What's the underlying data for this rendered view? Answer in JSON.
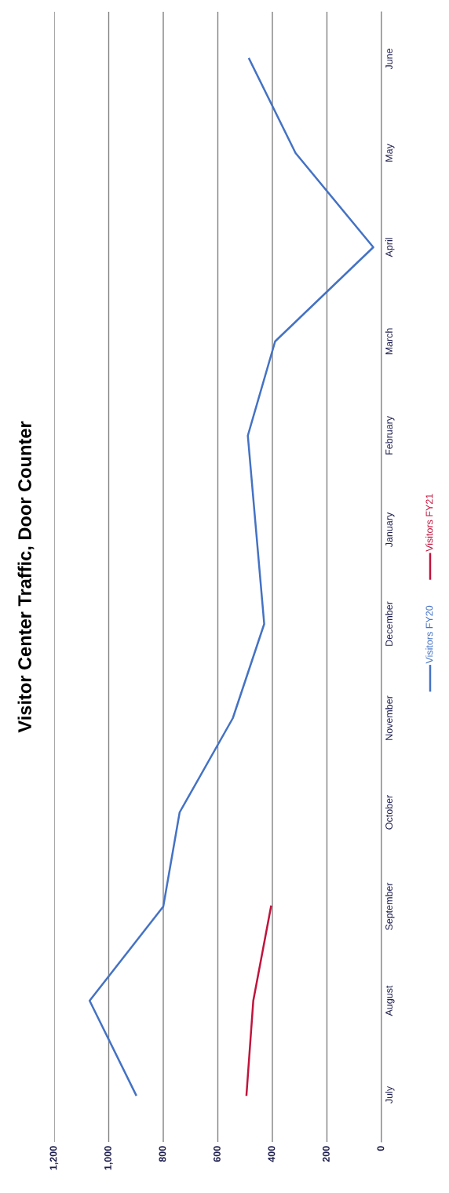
{
  "chart_data": {
    "type": "line",
    "orientation": "horizontal",
    "title": "Visitor Center Traffic, Door Counter",
    "categories": [
      "June",
      "May",
      "April",
      "March",
      "February",
      "January",
      "December",
      "November",
      "October",
      "September",
      "August",
      "July"
    ],
    "series": [
      {
        "name": "Visitors FY20",
        "color": "#4472c4",
        "values": [
          485,
          315,
          30,
          390,
          490,
          460,
          430,
          545,
          740,
          800,
          1070,
          900
        ]
      },
      {
        "name": "Visitors FY21",
        "color": "#c0143c",
        "values": [
          null,
          null,
          null,
          null,
          null,
          null,
          null,
          null,
          null,
          405,
          470,
          495
        ]
      }
    ],
    "xlim": [
      1200,
      0
    ],
    "xticks": [
      {
        "value": 1200,
        "label": "1,200"
      },
      {
        "value": 1000,
        "label": "1,000"
      },
      800,
      600,
      400,
      200,
      0
    ],
    "grid": "x",
    "legend": "bottom",
    "marker": "none",
    "line_style": "solid"
  }
}
